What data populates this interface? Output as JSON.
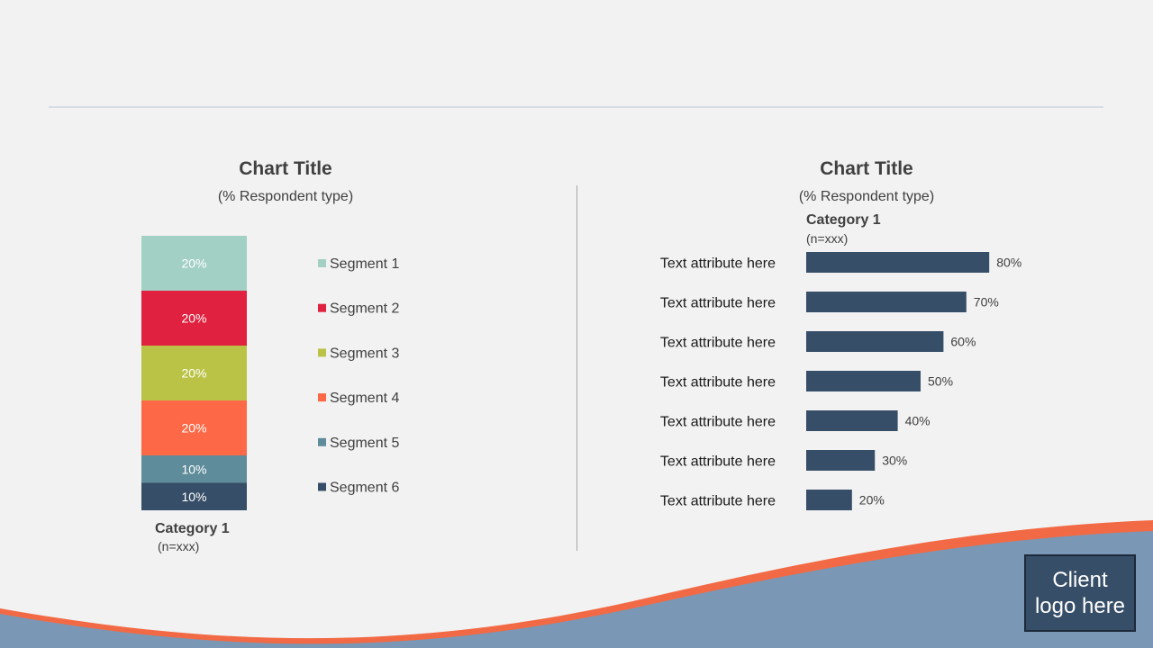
{
  "left_chart": {
    "title": "Chart Title",
    "subtitle": "(% Respondent type)",
    "category": "Category 1",
    "n_label": "(n=xxx)"
  },
  "right_chart": {
    "title": "Chart Title",
    "subtitle": "(% Respondent type)",
    "category": "Category 1",
    "n_label": "(n=xxx)"
  },
  "logo": {
    "text": "Client logo here"
  },
  "colors": {
    "segment_1": "#a3d0c5",
    "segment_2": "#e0213f",
    "segment_3": "#bac346",
    "segment_4": "#fd6946",
    "segment_5": "#5f8c9a",
    "segment_6": "#374e68",
    "bar": "#374e68",
    "wave_blue": "#7a97b5",
    "wave_orange": "#f26a45"
  },
  "chart_data": [
    {
      "type": "bar",
      "stacked": true,
      "title": "Chart Title",
      "subtitle": "(% Respondent type)",
      "categories": [
        "Category 1"
      ],
      "series": [
        {
          "name": "Segment 1",
          "values": [
            20
          ],
          "label": "20%"
        },
        {
          "name": "Segment 2",
          "values": [
            20
          ],
          "label": "20%"
        },
        {
          "name": "Segment 3",
          "values": [
            20
          ],
          "label": "20%"
        },
        {
          "name": "Segment 4",
          "values": [
            20
          ],
          "label": "20%"
        },
        {
          "name": "Segment 5",
          "values": [
            10
          ],
          "label": "10%"
        },
        {
          "name": "Segment 6",
          "values": [
            10
          ],
          "label": "10%"
        }
      ],
      "legend": "right",
      "ylim": [
        0,
        100
      ],
      "grid": false
    },
    {
      "type": "bar",
      "orientation": "horizontal",
      "title": "Chart Title",
      "subtitle": "(% Respondent type)",
      "series_name": "Category 1",
      "categories": [
        "Text attribute here",
        "Text attribute here",
        "Text attribute here",
        "Text attribute here",
        "Text attribute here",
        "Text attribute here",
        "Text attribute here"
      ],
      "values": [
        80,
        70,
        60,
        50,
        40,
        30,
        20
      ],
      "labels": [
        "80%",
        "70%",
        "60%",
        "50%",
        "40%",
        "30%",
        "20%"
      ],
      "xlim": [
        0,
        100
      ],
      "grid": false
    }
  ]
}
